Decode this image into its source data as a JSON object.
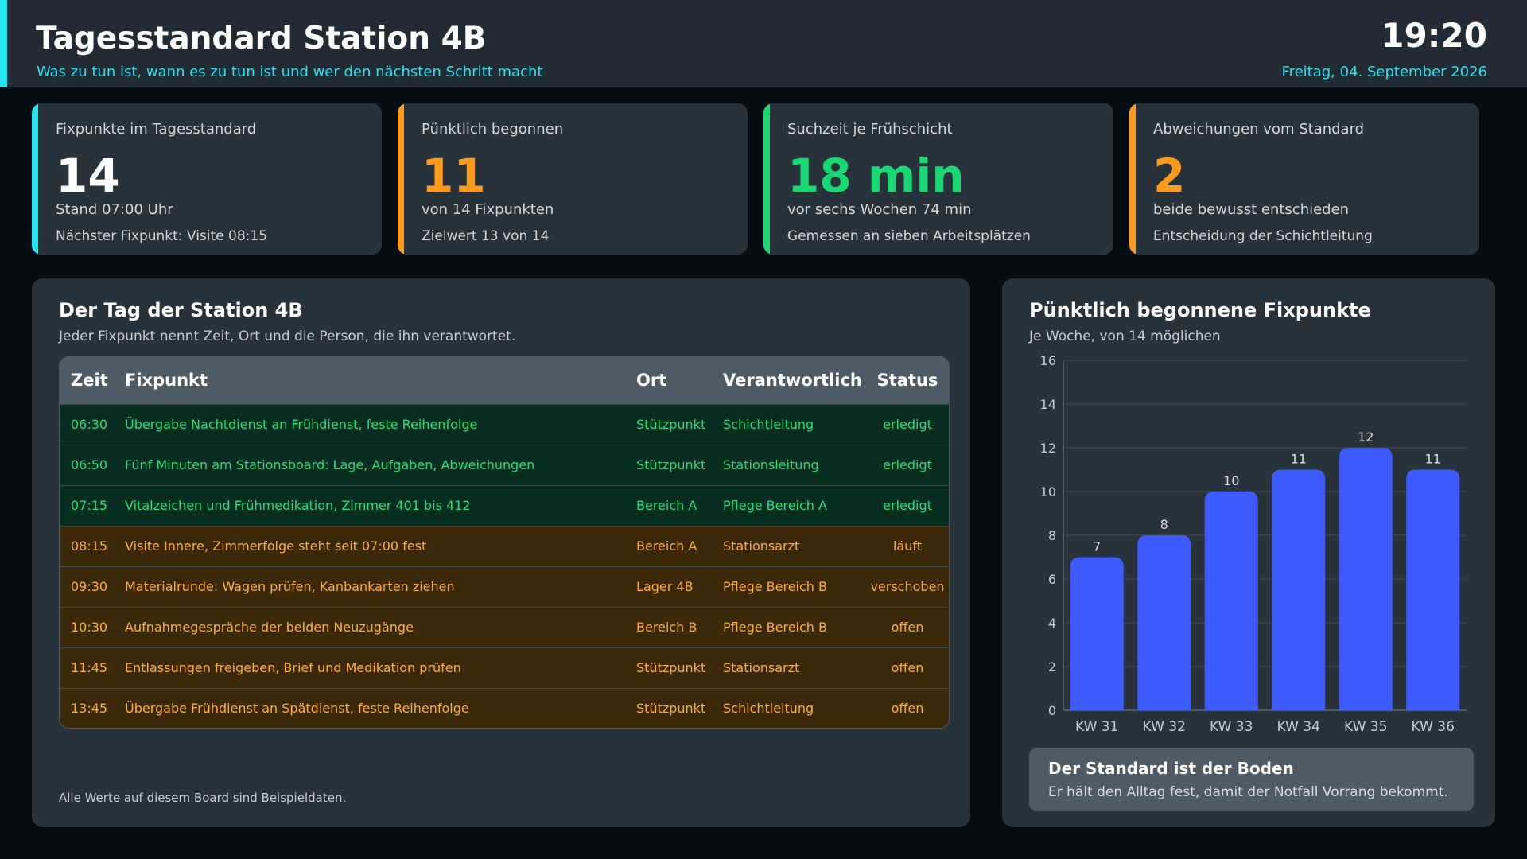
{
  "header": {
    "title": "Tagesstandard Station 4B",
    "subtitle": "Was zu tun ist, wann es zu tun ist und wer den nächsten Schritt macht",
    "clock": "19:20",
    "date": "Freitag, 04. September 2026"
  },
  "colors": {
    "accent_cyan": "#22e5f0",
    "accent_orange": "#ff9a1a",
    "accent_green": "#18d873",
    "bar_blue": "#3d5afe"
  },
  "kpis": [
    {
      "label": "Fixpunkte im Tagesstandard",
      "value": "14",
      "line1": "Stand 07:00 Uhr",
      "line2": "Nächster Fixpunkt: Visite 08:15",
      "color": "#22e5f0",
      "value_color": "#ffffff"
    },
    {
      "label": "Pünktlich begonnen",
      "value": "11",
      "line1": "von 14 Fixpunkten",
      "line2": "Zielwert 13 von 14",
      "color": "#ff9a1a",
      "value_color": "#ff9a1a"
    },
    {
      "label": "Suchzeit je Frühschicht",
      "value": "18 min",
      "line1": "vor sechs Wochen 74 min",
      "line2": "Gemessen an sieben Arbeitsplätzen",
      "color": "#18d873",
      "value_color": "#18d873"
    },
    {
      "label": "Abweichungen vom Standard",
      "value": "2",
      "line1": "beide bewusst entschieden",
      "line2": "Entscheidung der Schichtleitung",
      "color": "#ff9a1a",
      "value_color": "#ff9a1a"
    }
  ],
  "schedule": {
    "title": "Der Tag der Station 4B",
    "subtitle": "Jeder Fixpunkt nennt Zeit, Ort und die Person, die ihn verantwortet.",
    "columns": [
      "Zeit",
      "Fixpunkt",
      "Ort",
      "Verantwortlich",
      "Status"
    ],
    "rows": [
      {
        "time": "06:30",
        "task": "Übergabe Nachtdienst an Frühdienst, feste Reihenfolge",
        "place": "Stützpunkt",
        "owner": "Schichtleitung",
        "status": "erledigt",
        "state": "done"
      },
      {
        "time": "06:50",
        "task": "Fünf Minuten am Stationsboard: Lage, Aufgaben, Abweichungen",
        "place": "Stützpunkt",
        "owner": "Stationsleitung",
        "status": "erledigt",
        "state": "done"
      },
      {
        "time": "07:15",
        "task": "Vitalzeichen und Frühmedikation, Zimmer 401 bis 412",
        "place": "Bereich A",
        "owner": "Pflege Bereich A",
        "status": "erledigt",
        "state": "done"
      },
      {
        "time": "08:15",
        "task": "Visite Innere, Zimmerfolge steht seit 07:00 fest",
        "place": "Bereich A",
        "owner": "Stationsarzt",
        "status": "läuft",
        "state": "pending"
      },
      {
        "time": "09:30",
        "task": "Materialrunde: Wagen prüfen, Kanbankarten ziehen",
        "place": "Lager 4B",
        "owner": "Pflege Bereich B",
        "status": "verschoben",
        "state": "pending"
      },
      {
        "time": "10:30",
        "task": "Aufnahmegespräche der beiden Neuzugänge",
        "place": "Bereich B",
        "owner": "Pflege Bereich B",
        "status": "offen",
        "state": "pending"
      },
      {
        "time": "11:45",
        "task": "Entlassungen freigeben, Brief und Medikation prüfen",
        "place": "Stützpunkt",
        "owner": "Stationsarzt",
        "status": "offen",
        "state": "pending"
      },
      {
        "time": "13:45",
        "task": "Übergabe Frühdienst an Spätdienst, feste Reihenfolge",
        "place": "Stützpunkt",
        "owner": "Schichtleitung",
        "status": "offen",
        "state": "pending"
      }
    ],
    "footnote": "Alle Werte auf diesem Board sind Beispieldaten."
  },
  "chart_panel": {
    "title": "Pünktlich begonnene Fixpunkte",
    "subtitle": "Je Woche, von 14 möglichen",
    "note_title": "Der Standard ist der Boden",
    "note_text": "Er hält den Alltag fest, damit der Notfall Vorrang bekommt."
  },
  "chart_data": {
    "type": "bar",
    "categories": [
      "KW 31",
      "KW 32",
      "KW 33",
      "KW 34",
      "KW 35",
      "KW 36"
    ],
    "values": [
      7,
      8,
      10,
      11,
      12,
      11
    ],
    "ylim": [
      0,
      16
    ],
    "yticks": [
      0,
      2,
      4,
      6,
      8,
      10,
      12,
      14,
      16
    ],
    "grid": true,
    "data_labels": true
  }
}
